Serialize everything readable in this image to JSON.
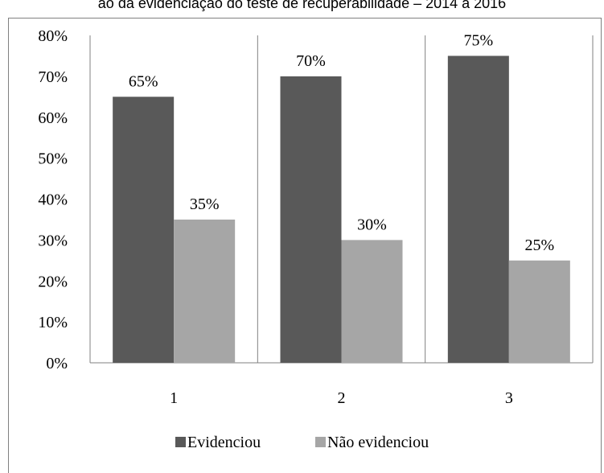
{
  "chart_data": {
    "type": "bar",
    "title": "ão da evidenciação do teste de recuperabilidade – 2014 a 2016",
    "categories": [
      "1",
      "2",
      "3"
    ],
    "series": [
      {
        "name": "Evidenciou",
        "values": [
          65,
          70,
          75
        ],
        "labels": [
          "65%",
          "70%",
          "75%"
        ],
        "color": "#595959"
      },
      {
        "name": "Não evidenciou",
        "values": [
          35,
          30,
          25
        ],
        "labels": [
          "35%",
          "30%",
          "25%"
        ],
        "color": "#a6a6a6"
      }
    ],
    "ylim": [
      0,
      80
    ],
    "yticks": [
      "0%",
      "10%",
      "20%",
      "30%",
      "40%",
      "50%",
      "60%",
      "70%",
      "80%"
    ],
    "xlabel": "",
    "ylabel": "",
    "legend_position": "bottom",
    "grid": false
  }
}
